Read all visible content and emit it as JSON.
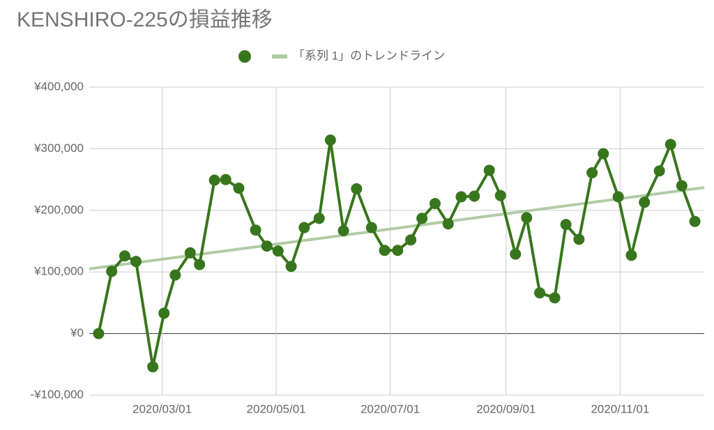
{
  "chart_data": {
    "type": "line",
    "title": "KENSHIRO-225の損益推移",
    "x": [
      "2020/01/27",
      "2020/02/03",
      "2020/02/10",
      "2020/02/16",
      "2020/02/25",
      "2020/03/02",
      "2020/03/08",
      "2020/03/16",
      "2020/03/21",
      "2020/03/29",
      "2020/04/04",
      "2020/04/11",
      "2020/04/20",
      "2020/04/26",
      "2020/05/02",
      "2020/05/09",
      "2020/05/16",
      "2020/05/24",
      "2020/05/30",
      "2020/06/06",
      "2020/06/13",
      "2020/06/21",
      "2020/06/28",
      "2020/07/05",
      "2020/07/12",
      "2020/07/18",
      "2020/07/25",
      "2020/08/01",
      "2020/08/08",
      "2020/08/15",
      "2020/08/23",
      "2020/08/29",
      "2020/09/06",
      "2020/09/12",
      "2020/09/19",
      "2020/09/27",
      "2020/10/03",
      "2020/10/10",
      "2020/10/17",
      "2020/10/23",
      "2020/10/31",
      "2020/11/07",
      "2020/11/14",
      "2020/11/22",
      "2020/11/28",
      "2020/12/04",
      "2020/12/11"
    ],
    "series": [
      {
        "color": "#38761d",
        "values": [
          0,
          101000,
          126000,
          117000,
          -54000,
          33000,
          95000,
          131000,
          112000,
          249000,
          250000,
          236000,
          168000,
          142000,
          134000,
          109000,
          172000,
          187000,
          314000,
          167000,
          235000,
          172000,
          135000,
          135000,
          152000,
          187000,
          211000,
          178000,
          222000,
          223000,
          265000,
          224000,
          129000,
          188000,
          66000,
          58000,
          177000,
          153000,
          261000,
          292000,
          222000,
          127000,
          213000,
          264000,
          307000,
          240000,
          182000
        ]
      },
      {
        "name": "「系列 1」のトレンドライン",
        "color": "#b0cca4",
        "x": [
          "2020/01/22",
          "2020/12/16"
        ],
        "values": [
          105000,
          237000
        ]
      }
    ],
    "xlim": [
      "2020/01/22",
      "2020/12/16"
    ],
    "xticks": [
      "2020/03/01",
      "2020/05/01",
      "2020/07/01",
      "2020/09/01",
      "2020/11/01"
    ],
    "ylim": [
      -100000,
      400000
    ],
    "yticks": [
      {
        "value": -100000,
        "label": "-¥100,000"
      },
      {
        "value": 0,
        "label": "¥0"
      },
      {
        "value": 100000,
        "label": "¥100,000"
      },
      {
        "value": 200000,
        "label": "¥200,000"
      },
      {
        "value": 300000,
        "label": "¥300,000"
      },
      {
        "value": 400000,
        "label": "¥400,000"
      }
    ],
    "grid": true,
    "legend": "top"
  }
}
